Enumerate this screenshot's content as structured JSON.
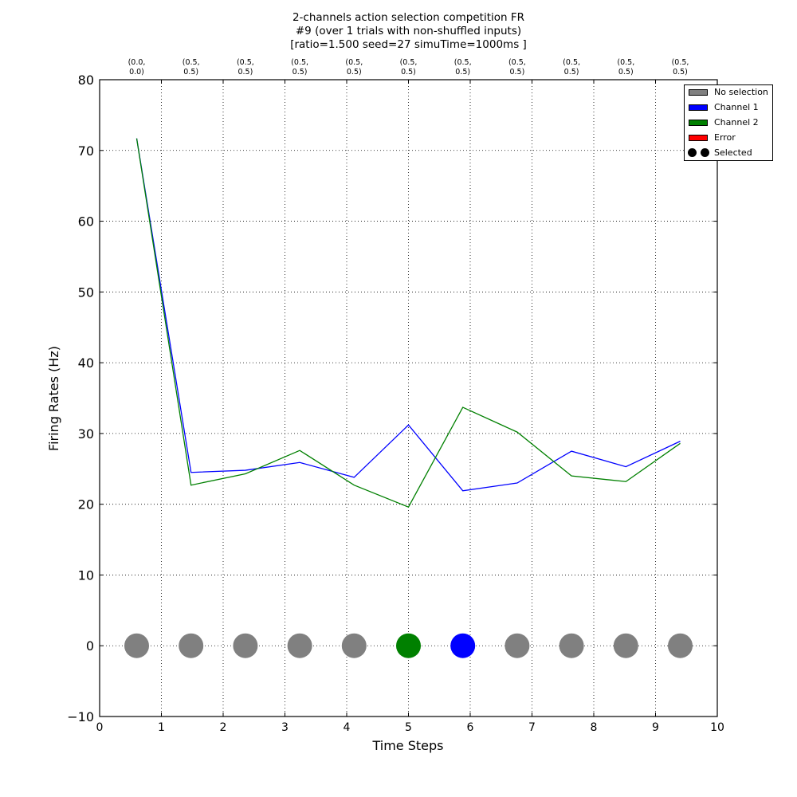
{
  "title": {
    "line1": "2-channels action selection competition FR",
    "line2": "#9 (over 1 trials with non-shuffled inputs)",
    "line3": "[ratio=1.500 seed=27 simuTime=1000ms ]"
  },
  "colors": {
    "no_selection": "#808080",
    "channel1": "#0000ff",
    "channel2": "#008000",
    "error": "#ff0000",
    "selected": "#000000"
  },
  "legend": {
    "items": [
      {
        "label": "No selection",
        "color": "#808080",
        "kind": "swatch"
      },
      {
        "label": "Channel 1",
        "color": "#0000ff",
        "kind": "swatch"
      },
      {
        "label": "Channel 2",
        "color": "#008000",
        "kind": "swatch"
      },
      {
        "label": "Error",
        "color": "#ff0000",
        "kind": "swatch"
      },
      {
        "label": "Selected",
        "color": "#000000",
        "kind": "dots"
      }
    ]
  },
  "chart_data": {
    "type": "line",
    "xlabel": "Time Steps",
    "ylabel": "Firing Rates (Hz)",
    "xlim": [
      0,
      10
    ],
    "ylim": [
      -10,
      80
    ],
    "xticks": [
      0,
      1,
      2,
      3,
      4,
      5,
      6,
      7,
      8,
      9,
      10
    ],
    "yticks": [
      -10,
      0,
      10,
      20,
      30,
      40,
      50,
      60,
      70,
      80
    ],
    "ytick_labels": [
      "−10",
      "0",
      "10",
      "20",
      "30",
      "40",
      "50",
      "60",
      "70",
      "80"
    ],
    "grid": true,
    "legend_position": "top-right",
    "x": [
      0.6,
      1.48,
      2.36,
      3.24,
      4.12,
      5.0,
      5.88,
      6.76,
      7.64,
      8.52,
      9.4
    ],
    "top_axis_labels": [
      [
        "(0.0,",
        "0.0)"
      ],
      [
        "(0.5,",
        "0.5)"
      ],
      [
        "(0.5,",
        "0.5)"
      ],
      [
        "(0.5,",
        "0.5)"
      ],
      [
        "(0.5,",
        "0.5)"
      ],
      [
        "(0.5,",
        "0.5)"
      ],
      [
        "(0.5,",
        "0.5)"
      ],
      [
        "(0.5,",
        "0.5)"
      ],
      [
        "(0.5,",
        "0.5)"
      ],
      [
        "(0.5,",
        "0.5)"
      ],
      [
        "(0.5,",
        "0.5)"
      ]
    ],
    "series": [
      {
        "name": "Channel 1",
        "color": "#0000ff",
        "values": [
          71.7,
          24.5,
          24.8,
          25.9,
          23.8,
          31.2,
          21.9,
          23.0,
          27.5,
          25.3,
          28.9
        ]
      },
      {
        "name": "Channel 2",
        "color": "#008000",
        "values": [
          71.7,
          22.7,
          24.3,
          27.6,
          22.7,
          19.6,
          33.7,
          30.2,
          24.0,
          23.2,
          28.6
        ]
      }
    ],
    "selection": {
      "y": 0,
      "values": [
        "No selection",
        "No selection",
        "No selection",
        "No selection",
        "No selection",
        "Channel 2",
        "Channel 1",
        "No selection",
        "No selection",
        "No selection",
        "No selection"
      ]
    }
  }
}
